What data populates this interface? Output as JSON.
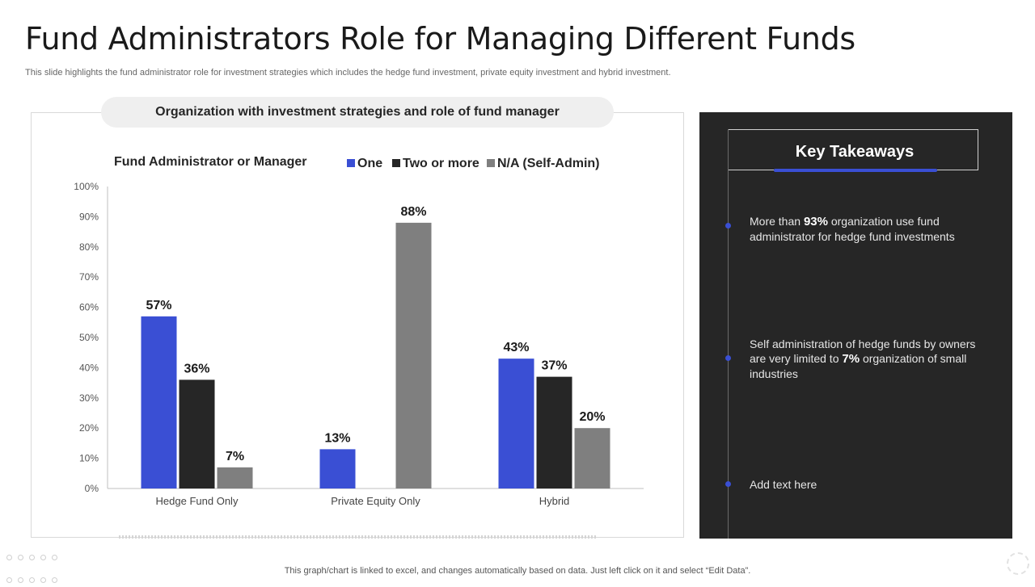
{
  "page": {
    "title": "Fund Administrators Role for Managing Different Funds",
    "subtitle": "This slide highlights the fund administrator role for investment strategies which includes the hedge fund investment, private equity investment and hybrid investment.",
    "chart_header": "Organization with investment strategies  and role of fund manager",
    "footer": "This graph/chart is linked to excel,  and changes automatically based on data. Just left click on it and select “Edit Data”."
  },
  "chart_data": {
    "type": "bar",
    "title": "Fund Administrator or Manager",
    "xlabel": "",
    "ylabel": "",
    "categories": [
      "Hedge Fund Only",
      "Private Equity Only",
      "Hybrid"
    ],
    "series": [
      {
        "name": "One",
        "color": "#3a4fd4",
        "values": [
          57,
          13,
          43
        ]
      },
      {
        "name": "Two or more",
        "color": "#262626",
        "values": [
          36,
          null,
          37
        ]
      },
      {
        "name": "N/A (Self-Admin)",
        "color": "#7f7f7f",
        "values": [
          7,
          88,
          20
        ]
      }
    ],
    "ylim": [
      0,
      100
    ],
    "yticks": [
      "0%",
      "10%",
      "20%",
      "30%",
      "40%",
      "50%",
      "60%",
      "70%",
      "80%",
      "90%",
      "100%"
    ],
    "value_suffix": "%",
    "legend_position": "top",
    "grid": false
  },
  "takeaways": {
    "title": "Key Takeaways",
    "accent_color": "#3a4fd4",
    "items": [
      {
        "pre": "More than ",
        "bold": "93%",
        "post": " organization use fund administrator for hedge fund investments"
      },
      {
        "pre": "Self administration of hedge funds by owners are very limited to ",
        "bold": "7%",
        "post": " organization of small industries"
      },
      {
        "pre": "Add text here",
        "bold": "",
        "post": ""
      }
    ]
  }
}
